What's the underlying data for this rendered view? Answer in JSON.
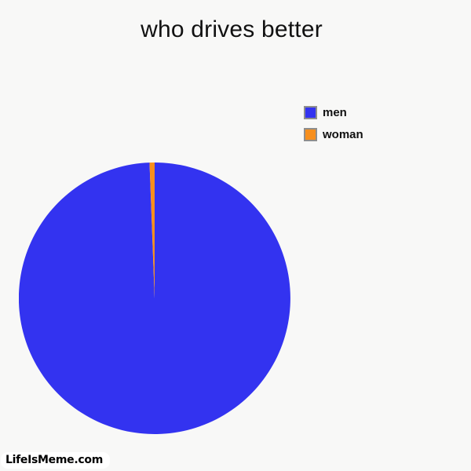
{
  "page": {
    "background": "#f8f8f7",
    "watermark": "LifeIsMeme.com"
  },
  "chart_data": {
    "type": "pie",
    "title": "who drives better",
    "slices": [
      {
        "label": "men",
        "value": 99.4,
        "color": "#3333f0"
      },
      {
        "label": "woman",
        "value": 0.6,
        "color": "#f78f1d"
      }
    ],
    "legend_position": "right",
    "start_angle_deg": -90,
    "direction": "clockwise",
    "legend_swatch_border_color": "#8e8e8e"
  }
}
